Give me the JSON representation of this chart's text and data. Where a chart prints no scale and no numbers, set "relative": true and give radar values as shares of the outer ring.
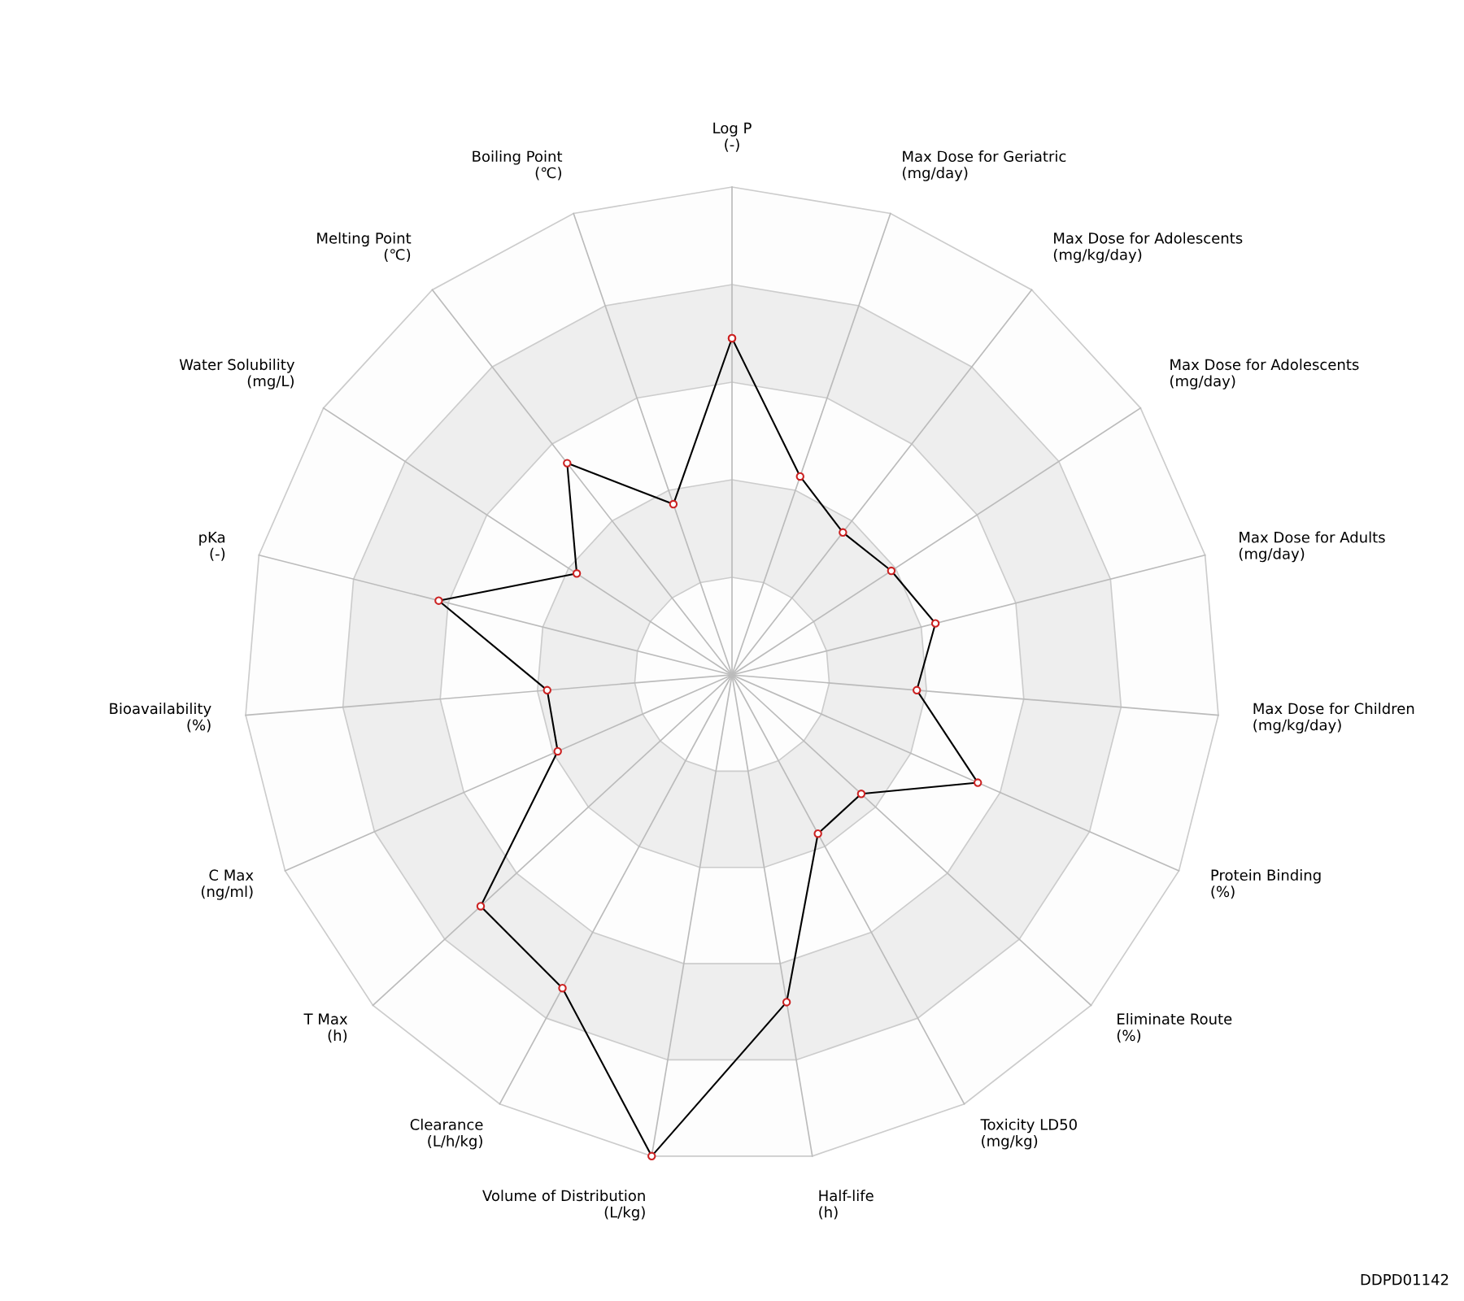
{
  "chart_data": {
    "type": "radar",
    "relative": true,
    "categories": [
      "Log P\n(-)",
      "Max Dose for Geriatric\n(mg/day)",
      "Max Dose for Adolescents\n(mg/kg/day)",
      "Max Dose for Adolescents\n(mg/day)",
      "Max Dose for Adults\n(mg/day)",
      "Max Dose for Children\n(mg/kg/day)",
      "Protein Binding\n(%)",
      "Eliminate Route\n(%)",
      "Toxicity LD50\n(mg/kg)",
      "Half-life\n(h)",
      "Volume of Distribution\n(L/kg)",
      "Clearance\n(L/h/kg)",
      "T Max\n(h)",
      "C Max\n(ng/ml)",
      "Bioavailability\n(%)",
      "pKa\n(-)",
      "Water Solubility\n(mg/L)",
      "Melting Point\n(℃)",
      "Boiling Point\n(℃)"
    ],
    "series": [
      {
        "color": "#000000",
        "values": [
          0.69,
          0.43,
          0.37,
          0.39,
          0.43,
          0.38,
          0.55,
          0.36,
          0.37,
          0.68,
          1.0,
          0.73,
          0.7,
          0.39,
          0.38,
          0.62,
          0.38,
          0.55,
          0.37
        ]
      }
    ],
    "marker": "circle",
    "grid": true,
    "annotations": [
      "DDPD01142"
    ]
  }
}
